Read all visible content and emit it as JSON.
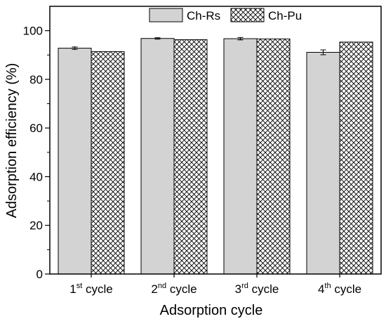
{
  "chart_data": {
    "type": "bar",
    "categories": [
      {
        "base": "1",
        "sup": "st",
        "rest": " cycle"
      },
      {
        "base": "2",
        "sup": "nd",
        "rest": " cycle"
      },
      {
        "base": "3",
        "sup": "rd",
        "rest": " cycle"
      },
      {
        "base": "4",
        "sup": "th",
        "rest": " cycle"
      }
    ],
    "series": [
      {
        "name": "Ch-Rs",
        "values": [
          92.8,
          96.8,
          96.7,
          91.1
        ],
        "errors": [
          0.5,
          0.3,
          0.5,
          1.0
        ],
        "fill": "#d3d3d3",
        "pattern": "solid"
      },
      {
        "name": "Ch-Pu",
        "values": [
          91.4,
          96.3,
          96.6,
          95.3
        ],
        "errors": [
          null,
          null,
          null,
          null
        ],
        "fill": "#ffffff",
        "pattern": "crosshatch"
      }
    ],
    "xlabel": "Adsorption cycle",
    "ylabel": "Adsorption efficiency (%)",
    "ylim": [
      0,
      110
    ],
    "yticks": [
      0,
      20,
      40,
      60,
      80,
      100
    ],
    "legend_position": "top-center",
    "grid": false
  }
}
